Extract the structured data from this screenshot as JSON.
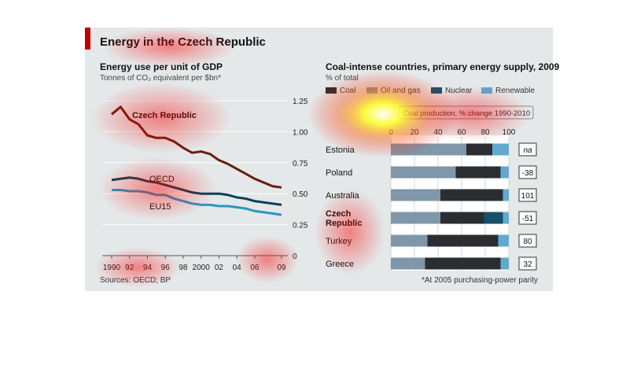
{
  "title": "Energy in the Czech Republic",
  "sources": "Sources: OECD; BP",
  "footnote": "*At 2005 purchasing-power parity",
  "colors": {
    "accent": "#c00000",
    "czech": "#6b1d10",
    "oecd": "#0c3f55",
    "eu15": "#2d95c3",
    "coal": "#2a2e30",
    "oil_gas": "#7f97a8",
    "nuclear": "#16506a",
    "renewable": "#62a9cf"
  },
  "chart_data": [
    {
      "type": "line",
      "title": "Energy use per unit of GDP",
      "subtitle": "Tonnes of CO₂ equivalent per $bn*",
      "x": [
        1990,
        1991,
        1992,
        1993,
        1994,
        1995,
        1996,
        1997,
        1998,
        1999,
        2000,
        2001,
        2002,
        2003,
        2004,
        2005,
        2006,
        2007,
        2008,
        2009
      ],
      "x_tick_labels": [
        "1990",
        "92",
        "94",
        "96",
        "98",
        "2000",
        "02",
        "04",
        "06",
        "09"
      ],
      "x_tick_values": [
        1990,
        1992,
        1994,
        1996,
        1998,
        2000,
        2002,
        2004,
        2006,
        2009
      ],
      "y_ticks": [
        "0",
        "0.25",
        "0.50",
        "0.75",
        "1.00",
        "1.25"
      ],
      "ylim": [
        0,
        1.3
      ],
      "series": [
        {
          "name": "Czech Republic",
          "values": [
            1.14,
            1.2,
            1.1,
            1.06,
            0.97,
            0.95,
            0.95,
            0.92,
            0.87,
            0.83,
            0.84,
            0.82,
            0.77,
            0.74,
            0.7,
            0.66,
            0.62,
            0.59,
            0.56,
            0.55
          ]
        },
        {
          "name": "OECD",
          "values": [
            0.61,
            0.62,
            0.63,
            0.62,
            0.6,
            0.59,
            0.57,
            0.55,
            0.53,
            0.51,
            0.5,
            0.5,
            0.5,
            0.49,
            0.47,
            0.46,
            0.44,
            0.43,
            0.42,
            0.41
          ]
        },
        {
          "name": "EU15",
          "values": [
            0.53,
            0.53,
            0.52,
            0.52,
            0.51,
            0.49,
            0.49,
            0.46,
            0.44,
            0.42,
            0.41,
            0.41,
            0.4,
            0.4,
            0.39,
            0.38,
            0.36,
            0.35,
            0.34,
            0.33
          ]
        }
      ]
    },
    {
      "type": "bar",
      "orientation": "horizontal",
      "stacked": true,
      "title": "Coal-intense countries, primary energy supply, 2009",
      "subtitle": "% of total",
      "x_ticks": [
        "0",
        "20",
        "40",
        "60",
        "80",
        "100"
      ],
      "xlim": [
        0,
        100
      ],
      "annotation_header": "Coal production, % change 1990-2010",
      "categories": [
        "Estonia",
        "Poland",
        "Australia",
        "Czech Republic",
        "Turkey",
        "Greece"
      ],
      "series": [
        {
          "name": "Oil and gas",
          "values": [
            64,
            55,
            42,
            42,
            31,
            29
          ]
        },
        {
          "name": "Coal",
          "values": [
            22,
            38,
            53,
            37,
            60,
            64
          ]
        },
        {
          "name": "Nuclear",
          "values": [
            0,
            0,
            0,
            16,
            0,
            0
          ]
        },
        {
          "name": "Renewable",
          "values": [
            14,
            7,
            5,
            5,
            9,
            7
          ]
        }
      ],
      "coal_change": [
        "na",
        "-38",
        "101",
        "-51",
        "80",
        "32"
      ]
    }
  ]
}
